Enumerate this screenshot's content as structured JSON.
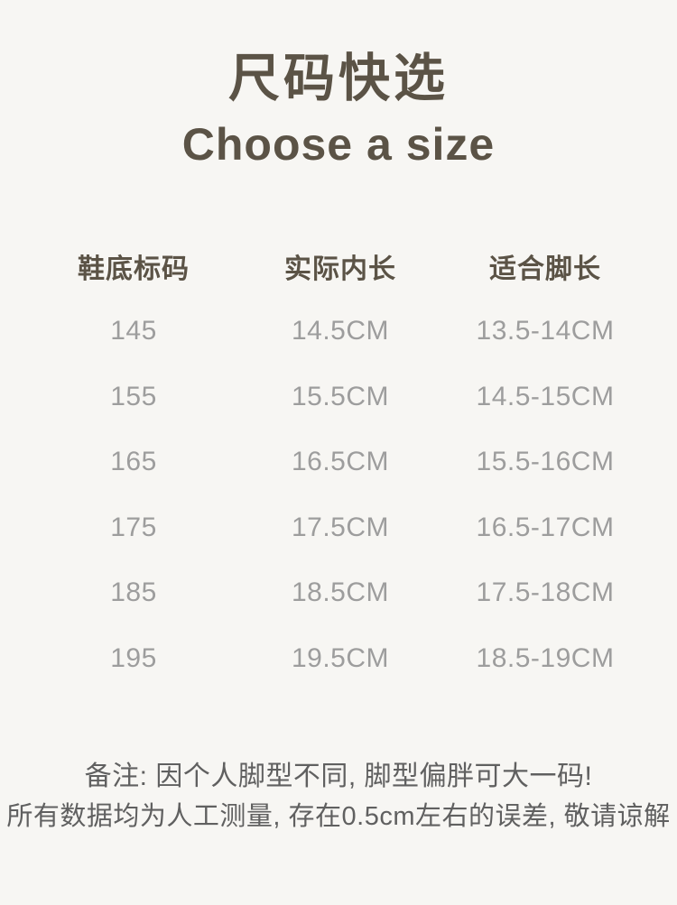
{
  "colors": {
    "background": "#f7f6f3",
    "title_text": "#5b5346",
    "table_data_text": "#9d9d9d",
    "note_text": "#606060"
  },
  "header": {
    "title_zh": "尺码快选",
    "title_en": "Choose a size"
  },
  "chart_data": {
    "type": "table",
    "title": "尺码快选 / Choose a size",
    "columns": [
      "鞋底标码",
      "实际内长",
      "适合脚长"
    ],
    "rows": [
      [
        "145",
        "14.5CM",
        "13.5-14CM"
      ],
      [
        "155",
        "15.5CM",
        "14.5-15CM"
      ],
      [
        "165",
        "16.5CM",
        "15.5-16CM"
      ],
      [
        "175",
        "17.5CM",
        "16.5-17CM"
      ],
      [
        "185",
        "18.5CM",
        "17.5-18CM"
      ],
      [
        "195",
        "19.5CM",
        "18.5-19CM"
      ]
    ]
  },
  "notes": {
    "line1": "备注: 因个人脚型不同, 脚型偏胖可大一码!",
    "line2": "所有数据均为人工测量, 存在0.5cm左右的误差, 敬请谅解"
  }
}
